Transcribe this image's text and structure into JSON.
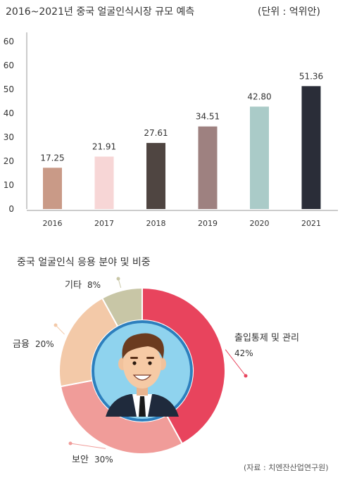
{
  "header": {
    "title": "2016~2021년 중국 얼굴인식시장 규모 예측",
    "unit": "(단위 : 억위안)"
  },
  "pie_section": {
    "title": "중국 얼굴인식 응용 분야 및 비중"
  },
  "source": "(자료 : 치엔잔산업연구원)",
  "colors": {
    "bars": [
      "#c99a87",
      "#f7d6d6",
      "#4f4541",
      "#9e8180",
      "#aacbc8",
      "#2a2d38"
    ],
    "pie": [
      "#e8445d",
      "#f09c99",
      "#f3c9a8",
      "#c8c6a6"
    ],
    "center_bg": "#2d7fbd",
    "inner_circle": "#8fd3ee"
  },
  "chart_data": [
    {
      "type": "bar",
      "title": "2016~2021년 중국 얼굴인식시장 규모 예측",
      "unit": "(단위 : 억위안)",
      "categories": [
        "2016",
        "2017",
        "2018",
        "2019",
        "2020",
        "2021"
      ],
      "values": [
        17.25,
        21.91,
        27.61,
        34.51,
        42.8,
        51.36
      ],
      "value_labels": [
        "17.25",
        "21.91",
        "27.61",
        "34.51",
        "42.80",
        "51.36"
      ],
      "yticks": [
        "0",
        "10",
        "20",
        "30",
        "40",
        "50",
        "60",
        "60"
      ],
      "ylim": [
        0,
        70
      ],
      "grid": false
    },
    {
      "type": "pie",
      "title": "중국 얼굴인식 응용 분야 및 비중",
      "labels": [
        "출입통제 및 관리",
        "보안",
        "금융",
        "기타"
      ],
      "values": [
        42,
        30,
        20,
        8
      ],
      "value_labels": [
        "42%",
        "30%",
        "20%",
        "8%"
      ]
    }
  ]
}
